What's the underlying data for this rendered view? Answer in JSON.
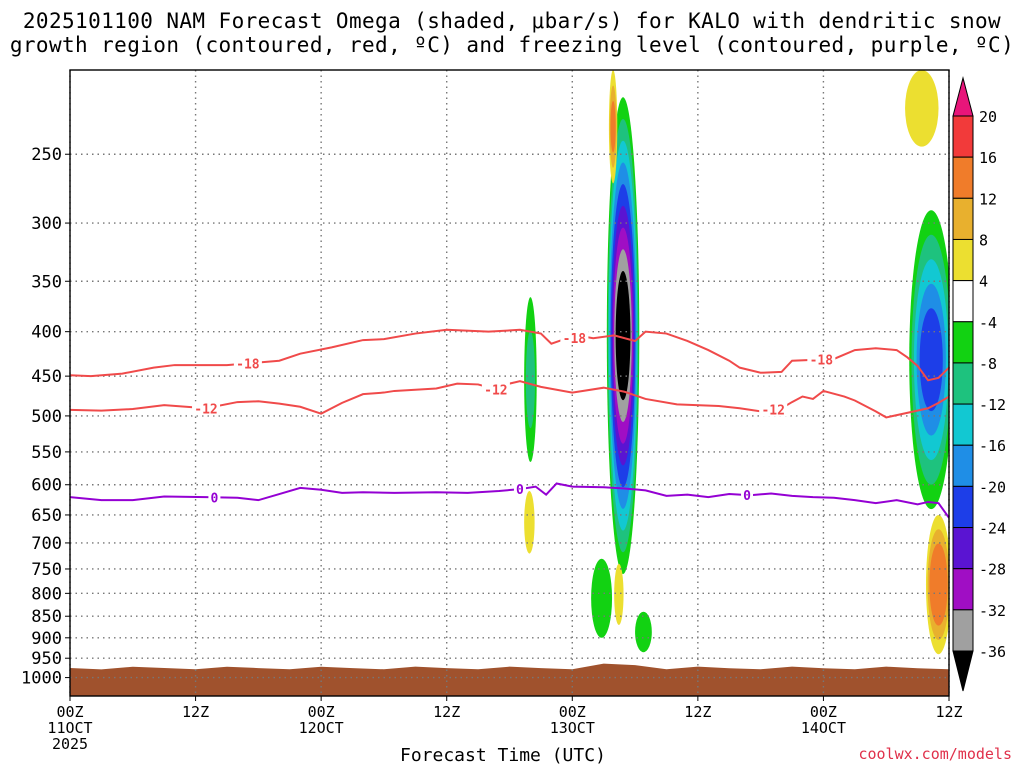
{
  "titles": {
    "line1": "2025101100 NAM Forecast Omega (shaded, μbar/s) for KALO with dendritic snow",
    "line2": "growth region (contoured, red, ºC) and freezing level (contoured, purple, ºC)"
  },
  "credit": "coolwx.com/models",
  "chart_data": {
    "type": "heatmap",
    "title": "2025101100 NAM Forecast Omega (shaded, μbar/s) for KALO with dendritic snow growth region (contoured, red, ºC) and freezing level (contoured, purple, ºC)",
    "xlabel": "Forecast Time (UTC)",
    "ylabel": "",
    "x_range_hours": [
      0,
      84
    ],
    "y_scale": "log-pressure",
    "y_range_hpa": [
      1050,
      200
    ],
    "x_ticks": [
      {
        "hour": 0,
        "lines": [
          "00Z",
          "11OCT",
          "2025"
        ]
      },
      {
        "hour": 12,
        "lines": [
          "12Z"
        ]
      },
      {
        "hour": 24,
        "lines": [
          "00Z",
          "12OCT"
        ]
      },
      {
        "hour": 36,
        "lines": [
          "12Z"
        ]
      },
      {
        "hour": 48,
        "lines": [
          "00Z",
          "13OCT"
        ]
      },
      {
        "hour": 60,
        "lines": [
          "12Z"
        ]
      },
      {
        "hour": 72,
        "lines": [
          "00Z",
          "14OCT"
        ]
      },
      {
        "hour": 84,
        "lines": [
          "12Z"
        ]
      }
    ],
    "y_ticks": [
      250,
      300,
      350,
      400,
      450,
      500,
      550,
      600,
      650,
      700,
      750,
      800,
      850,
      900,
      950,
      1000
    ],
    "grid": true,
    "colorbar": {
      "labels": [
        "20",
        "16",
        "12",
        "8",
        "4",
        "-4",
        "-8",
        "-12",
        "-16",
        "-20",
        "-24",
        "-28",
        "-32",
        "-36"
      ],
      "colors": [
        "#e8157a",
        "#f23a3a",
        "#f07c2a",
        "#e8b02e",
        "#ecdf30",
        "#ffffff",
        "#12d212",
        "#1ec27e",
        "#12c8d2",
        "#1f8ee6",
        "#1d3ee8",
        "#5a14d2",
        "#a00ec4",
        "#a0a0a0",
        "#000000"
      ]
    },
    "contours": [
      {
        "name": "-18",
        "color": "#f04a4a",
        "label_hours": [
          17,
          48.2,
          71.8
        ],
        "points": [
          [
            0,
            449
          ],
          [
            2,
            450
          ],
          [
            5,
            447
          ],
          [
            8,
            440
          ],
          [
            10,
            437
          ],
          [
            15,
            437
          ],
          [
            20,
            432
          ],
          [
            22,
            424
          ],
          [
            25,
            417
          ],
          [
            28,
            409
          ],
          [
            30,
            408
          ],
          [
            33,
            402
          ],
          [
            36,
            398
          ],
          [
            40,
            400
          ],
          [
            43,
            398
          ],
          [
            45,
            402
          ],
          [
            46,
            413
          ],
          [
            47,
            409
          ],
          [
            49,
            405
          ],
          [
            50,
            407
          ],
          [
            52,
            404
          ],
          [
            54,
            410
          ],
          [
            55,
            400
          ],
          [
            57,
            402
          ],
          [
            59,
            410
          ],
          [
            61,
            420
          ],
          [
            63,
            432
          ],
          [
            64,
            440
          ],
          [
            66,
            446
          ],
          [
            68,
            445
          ],
          [
            69,
            432
          ],
          [
            73,
            430
          ],
          [
            75,
            420
          ],
          [
            77,
            418
          ],
          [
            79,
            420
          ],
          [
            80,
            428
          ],
          [
            81,
            438
          ],
          [
            82,
            455
          ],
          [
            83,
            452
          ],
          [
            84,
            440
          ],
          [
            84.5,
            420
          ]
        ]
      },
      {
        "name": "-12",
        "color": "#f04a4a",
        "label_hours": [
          13,
          40.7,
          67.2
        ],
        "points": [
          [
            0,
            492
          ],
          [
            3,
            493
          ],
          [
            6,
            491
          ],
          [
            9,
            486
          ],
          [
            13,
            490
          ],
          [
            16,
            482
          ],
          [
            18,
            481
          ],
          [
            20,
            484
          ],
          [
            22,
            488
          ],
          [
            24,
            497
          ],
          [
            26,
            483
          ],
          [
            28,
            472
          ],
          [
            30,
            470
          ],
          [
            31,
            468
          ],
          [
            35,
            465
          ],
          [
            37,
            459
          ],
          [
            39,
            460
          ],
          [
            41,
            467
          ],
          [
            42,
            459
          ],
          [
            43,
            456
          ],
          [
            45,
            463
          ],
          [
            48,
            470
          ],
          [
            51,
            464
          ],
          [
            53,
            469
          ],
          [
            55,
            478
          ],
          [
            58,
            485
          ],
          [
            62,
            487
          ],
          [
            64,
            490
          ],
          [
            66,
            494
          ],
          [
            68,
            490
          ],
          [
            69,
            482
          ],
          [
            70,
            475
          ],
          [
            71,
            478
          ],
          [
            72,
            468
          ],
          [
            74,
            475
          ],
          [
            75,
            480
          ],
          [
            77,
            494
          ],
          [
            78,
            502
          ],
          [
            80,
            496
          ],
          [
            82,
            490
          ],
          [
            83,
            483
          ],
          [
            84,
            475
          ]
        ]
      },
      {
        "name": "0",
        "color": "#9400d3",
        "label_hours": [
          13.8,
          43,
          64.7
        ],
        "points": [
          [
            0,
            620
          ],
          [
            3,
            625
          ],
          [
            6,
            625
          ],
          [
            9,
            619
          ],
          [
            13,
            620
          ],
          [
            16,
            621
          ],
          [
            18,
            625
          ],
          [
            20,
            615
          ],
          [
            22,
            605
          ],
          [
            24,
            608
          ],
          [
            26,
            613
          ],
          [
            28,
            612
          ],
          [
            31,
            613
          ],
          [
            35,
            612
          ],
          [
            38,
            613
          ],
          [
            41,
            610
          ],
          [
            43,
            607
          ],
          [
            44.5,
            603
          ],
          [
            45.5,
            616
          ],
          [
            46.5,
            598
          ],
          [
            48,
            603
          ],
          [
            51,
            604
          ],
          [
            53,
            606
          ],
          [
            55,
            609
          ],
          [
            57,
            618
          ],
          [
            59,
            616
          ],
          [
            61,
            620
          ],
          [
            63,
            615
          ],
          [
            65,
            617
          ],
          [
            67,
            614
          ],
          [
            69,
            618
          ],
          [
            71,
            620
          ],
          [
            73,
            621
          ],
          [
            75,
            625
          ],
          [
            77,
            630
          ],
          [
            79,
            625
          ],
          [
            81,
            632
          ],
          [
            82,
            628
          ],
          [
            83,
            630
          ],
          [
            84,
            655
          ]
        ]
      }
    ],
    "omega_features": [
      {
        "desc": "thin green ascent band",
        "hour_range": [
          43.4,
          44.6
        ],
        "p_range": [
          365,
          565
        ],
        "peak": -8
      },
      {
        "desc": "thin yellow descent",
        "hour_range": [
          43.4,
          44.4
        ],
        "p_range": [
          610,
          720
        ],
        "peak": 6
      },
      {
        "desc": "main ascent core",
        "hour_range": [
          51.3,
          54.4
        ],
        "p_range": [
          215,
          760
        ],
        "peak": -36
      },
      {
        "desc": "upper descent",
        "hour_range": [
          51.5,
          52.3
        ],
        "p_range": [
          200,
          270
        ],
        "peak": 12
      },
      {
        "desc": "lower descent",
        "hour_range": [
          52.0,
          52.9
        ],
        "p_range": [
          740,
          870
        ],
        "peak": 6
      },
      {
        "desc": "low-level ascent",
        "hour_range": [
          49.8,
          51.8
        ],
        "p_range": [
          730,
          900
        ],
        "peak": -6
      },
      {
        "desc": "small ascent patch",
        "hour_range": [
          54.0,
          55.6
        ],
        "p_range": [
          840,
          935
        ],
        "peak": -6
      },
      {
        "desc": "late ascent",
        "hour_range": [
          80.2,
          84.4
        ],
        "p_range": [
          290,
          640
        ],
        "peak": -20
      },
      {
        "desc": "late upper descent",
        "hour_range": [
          79.8,
          83.0
        ],
        "p_range": [
          200,
          245
        ],
        "peak": 5
      },
      {
        "desc": "late lower descent",
        "hour_range": [
          81.8,
          84.2
        ],
        "p_range": [
          650,
          940
        ],
        "peak": 14
      }
    ],
    "terrain_top_hpa": 975
  },
  "axes": {
    "xlabel": "Forecast Time (UTC)"
  }
}
